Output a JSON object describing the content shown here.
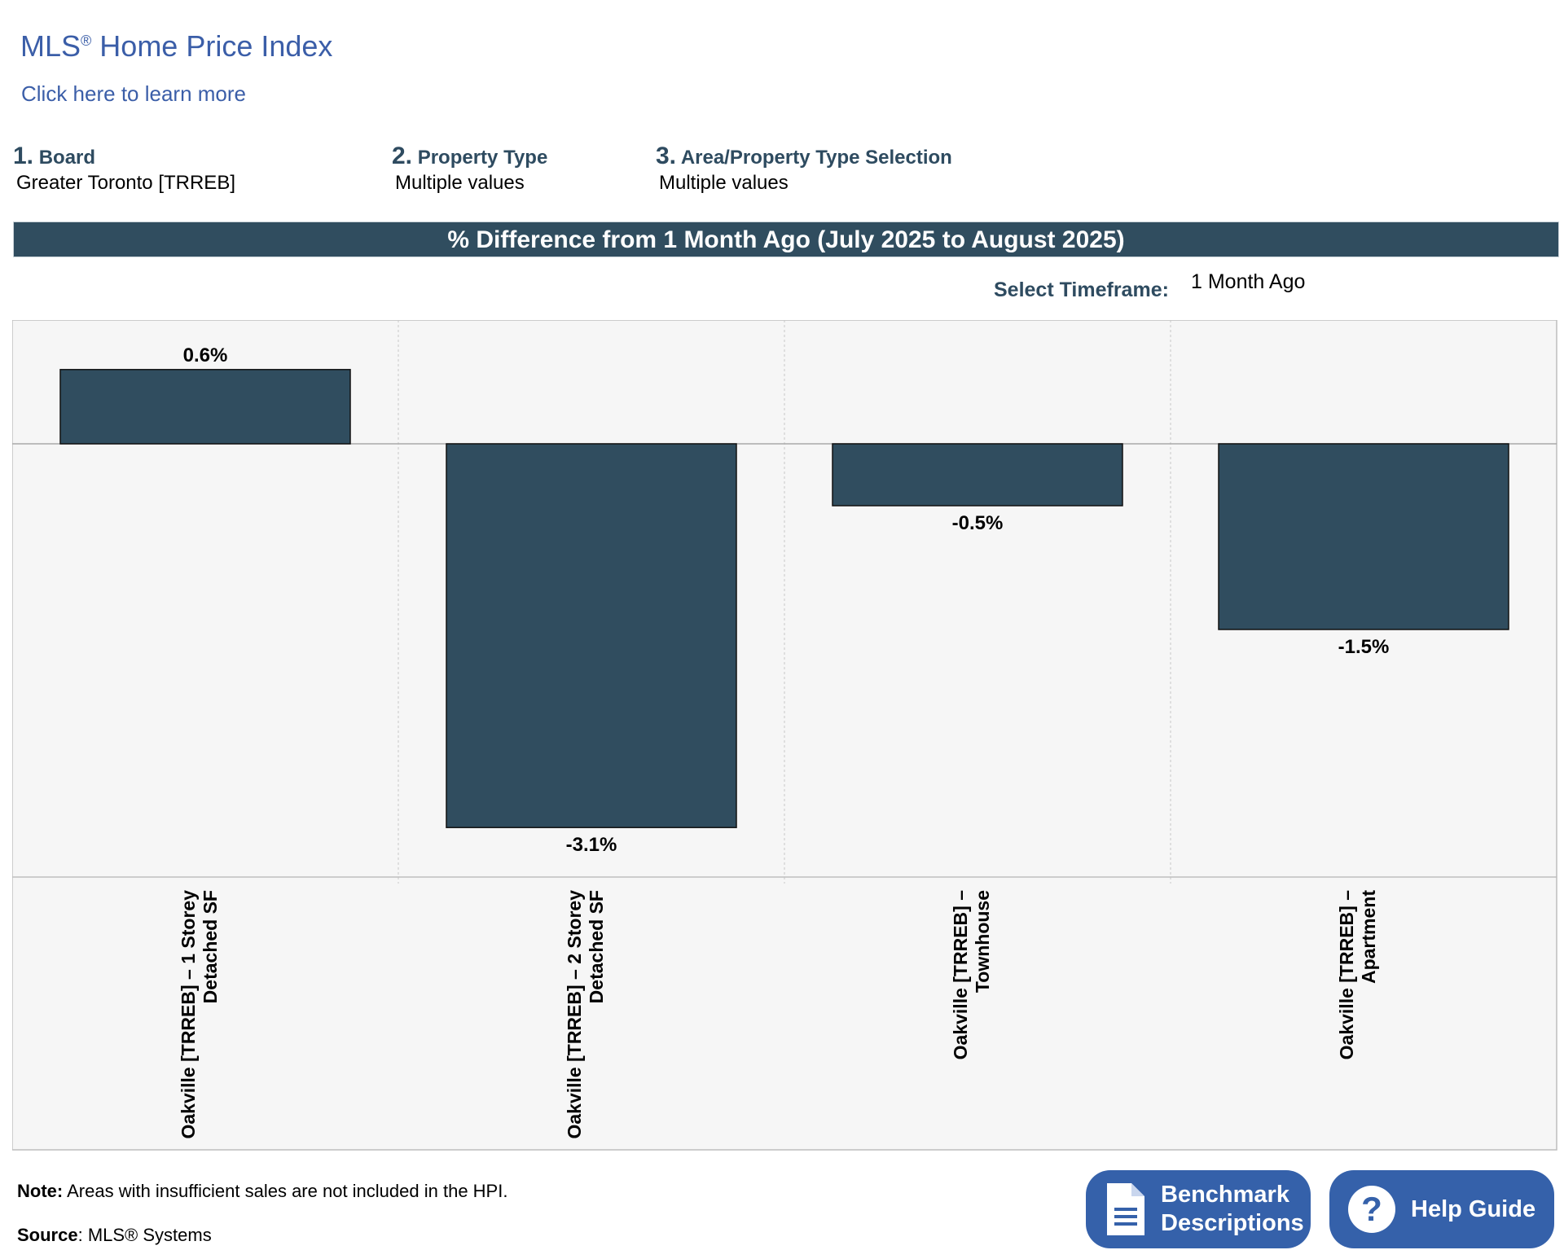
{
  "header": {
    "title_main": "MLS",
    "title_reg": "®",
    "title_rest": " Home Price Index",
    "learn_more": "Click here to learn more"
  },
  "filters": [
    {
      "num": "1.",
      "label": "Board",
      "value": "Greater Toronto [TRREB]"
    },
    {
      "num": "2.",
      "label": "Property Type",
      "value": "Multiple values"
    },
    {
      "num": "3.",
      "label": "Area/Property Type Selection",
      "value": "Multiple values"
    }
  ],
  "timeframe": {
    "label": "Select Timeframe:",
    "value": "1 Month Ago"
  },
  "colors": {
    "bar": "#304d5f",
    "plot_bg": "#f6f6f6",
    "button": "#3561aa",
    "accent": "#3b5ea8"
  },
  "chart_data": {
    "type": "bar",
    "title": "% Difference from 1 Month Ago (July 2025 to August 2025)",
    "categories": [
      [
        "Oakville [TRREB] – 1 Storey",
        "Detached SF"
      ],
      [
        "Oakville [TRREB] – 2 Storey",
        "Detached SF"
      ],
      [
        "Oakville [TRREB] –",
        "Townhouse"
      ],
      [
        "Oakville [TRREB] –",
        "Apartment"
      ]
    ],
    "values": [
      0.6,
      -3.1,
      -0.5,
      -1.5
    ],
    "value_labels": [
      "0.6%",
      "-3.1%",
      "-0.5%",
      "-1.5%"
    ],
    "ylim": [
      -3.5,
      1.0
    ],
    "xlabel": "",
    "ylabel": "",
    "grid": true
  },
  "footer": {
    "note_label": "Note:",
    "note_text": " Areas with insufficient sales are not included in the HPI.",
    "source_label": "Source",
    "source_text": ": MLS® Systems",
    "benchmark_line1": "Benchmark",
    "benchmark_line2": "Descriptions",
    "help_label": "Help Guide"
  }
}
